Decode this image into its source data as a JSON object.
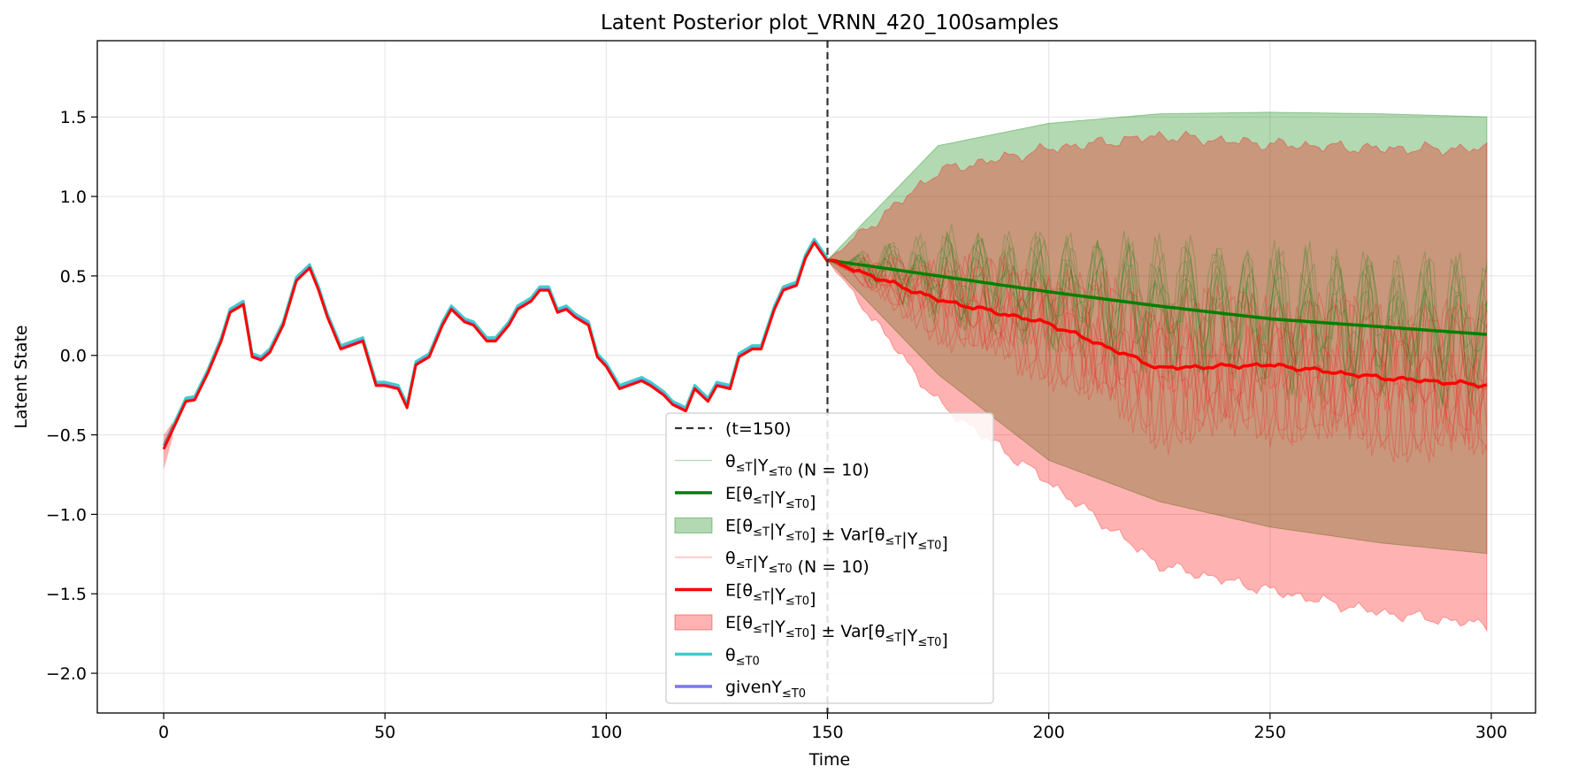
{
  "chart_data": {
    "type": "line",
    "title": "Latent Posterior plot_VRNN_420_100samples",
    "xlabel": "Time",
    "ylabel": "Latent State",
    "xlim": [
      -15,
      310
    ],
    "ylim": [
      -2.25,
      1.98
    ],
    "x_ticks": [
      0,
      50,
      100,
      150,
      200,
      250,
      300
    ],
    "y_ticks": [
      -2.0,
      -1.5,
      -1.0,
      -0.5,
      0.0,
      0.5,
      1.0,
      1.5
    ],
    "x_tick_labels": [
      "0",
      "50",
      "100",
      "150",
      "200",
      "250",
      "300"
    ],
    "y_tick_labels": [
      "−2.0",
      "−1.5",
      "−1.0",
      "−0.5",
      "0.0",
      "0.5",
      "1.0",
      "1.5"
    ],
    "grid": true,
    "legend_position": "lower-center",
    "split_time": 150,
    "observed": {
      "x": [
        0,
        3,
        5,
        7,
        10,
        13,
        15,
        18,
        20,
        22,
        24,
        27,
        30,
        33,
        35,
        37,
        40,
        43,
        45,
        48,
        50,
        53,
        55,
        57,
        60,
        63,
        65,
        68,
        70,
        73,
        75,
        78,
        80,
        83,
        85,
        87,
        89,
        91,
        93,
        96,
        98,
        100,
        103,
        105,
        108,
        110,
        113,
        115,
        118,
        120,
        123,
        125,
        128,
        130,
        133,
        135,
        138,
        140,
        143,
        145,
        147,
        150
      ],
      "y": [
        -0.58,
        -0.4,
        -0.28,
        -0.27,
        -0.1,
        0.1,
        0.28,
        0.33,
        0.0,
        -0.02,
        0.03,
        0.2,
        0.48,
        0.56,
        0.42,
        0.25,
        0.05,
        0.08,
        0.1,
        -0.18,
        -0.18,
        -0.2,
        -0.32,
        -0.05,
        0.0,
        0.2,
        0.3,
        0.22,
        0.2,
        0.1,
        0.1,
        0.2,
        0.3,
        0.35,
        0.42,
        0.42,
        0.28,
        0.3,
        0.25,
        0.2,
        0.0,
        -0.06,
        -0.2,
        -0.18,
        -0.15,
        -0.18,
        -0.24,
        -0.3,
        -0.34,
        -0.2,
        -0.28,
        -0.18,
        -0.2,
        0.0,
        0.05,
        0.05,
        0.3,
        0.42,
        0.45,
        0.62,
        0.72,
        0.6
      ]
    },
    "series": [
      {
        "name": "E[θ≤T|Y≤T0] (green)",
        "color": "#008000",
        "x": [
          150,
          175,
          200,
          225,
          250,
          275,
          300
        ],
        "mean": [
          0.6,
          0.5,
          0.4,
          0.31,
          0.23,
          0.18,
          0.13
        ],
        "upper": [
          0.6,
          1.32,
          1.46,
          1.52,
          1.53,
          1.52,
          1.5
        ],
        "lower": [
          0.6,
          -0.12,
          -0.66,
          -0.92,
          -1.08,
          -1.18,
          -1.25
        ]
      },
      {
        "name": "E[θ≤T|Y≤T0] (red)",
        "color": "#ff0000",
        "x": [
          150,
          175,
          200,
          225,
          250,
          275,
          300
        ],
        "mean": [
          0.6,
          0.35,
          0.2,
          -0.08,
          -0.06,
          -0.14,
          -0.19
        ],
        "upper": [
          0.6,
          1.16,
          1.3,
          1.38,
          1.33,
          1.3,
          1.3
        ],
        "lower": [
          0.6,
          -0.3,
          -0.8,
          -1.32,
          -1.48,
          -1.62,
          -1.7
        ]
      }
    ],
    "legend": [
      {
        "kind": "dashed",
        "color": "#333333",
        "label": "(t=150)"
      },
      {
        "kind": "thin",
        "color": "#008000",
        "label": "θ≤T|Y≤T0 (N = 10)"
      },
      {
        "kind": "line",
        "color": "#008000",
        "label": "E[θ≤T|Y≤T0]"
      },
      {
        "kind": "patch",
        "color": "#008000",
        "label": "E[θ≤T|Y≤T0] ± Var[θ≤T|Y≤T0]"
      },
      {
        "kind": "thin",
        "color": "#ff0000",
        "label": "θ≤T|Y≤T0 (N = 10)"
      },
      {
        "kind": "line",
        "color": "#ff0000",
        "label": "E[θ≤T|Y≤T0]"
      },
      {
        "kind": "patch",
        "color": "#ff0000",
        "label": "E[θ≤T|Y≤T0] ± Var[θ≤T|Y≤T0]"
      },
      {
        "kind": "line",
        "color": "#40cccc",
        "label": "θ≤T0"
      },
      {
        "kind": "line",
        "color": "#7777ee",
        "label": "givenY≤T0"
      }
    ]
  }
}
